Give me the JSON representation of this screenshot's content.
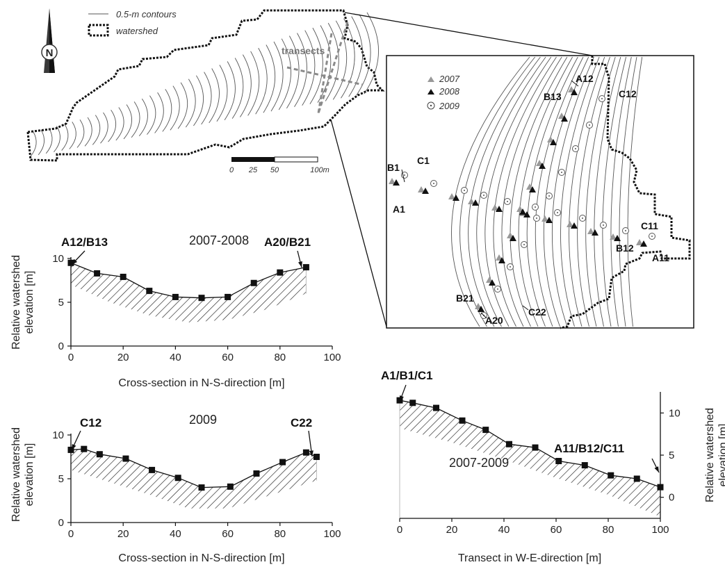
{
  "map": {
    "legend_contours": "0.5-m contours",
    "legend_watershed": "watershed",
    "transects_label": "transects",
    "north_letter": "N",
    "scale_ticks": [
      "0",
      "25",
      "50",
      "100m"
    ]
  },
  "inset": {
    "legend_2007": "2007",
    "legend_2008": "2008",
    "legend_2009": "2009",
    "point_labels": {
      "A12": "A12",
      "B13": "B13",
      "C12": "C12",
      "B1": "B1",
      "C1": "C1",
      "A1": "A1",
      "C11": "C11",
      "B12": "B12",
      "A11": "A11",
      "B21": "B21",
      "A20": "A20",
      "C22": "C22"
    }
  },
  "chart_data": [
    {
      "type": "area",
      "title": "2007-2008",
      "xlabel": "Cross-section in N-S-direction [m]",
      "ylabel": "Relative watershed elevation [m]",
      "xlim": [
        0,
        100
      ],
      "ylim": [
        0,
        10
      ],
      "x_ticks": [
        0,
        20,
        40,
        60,
        80,
        100
      ],
      "y_ticks": [
        0,
        5,
        10
      ],
      "annotations": [
        {
          "text": "A12/B13",
          "x": 0
        },
        {
          "text": "A20/B21",
          "x": 90
        }
      ],
      "series": [
        {
          "x": [
            0,
            10,
            20,
            30,
            40,
            50,
            60,
            70,
            80,
            90
          ],
          "values": [
            9.5,
            8.3,
            7.9,
            6.3,
            5.6,
            5.5,
            5.6,
            7.2,
            8.4,
            9.0
          ]
        }
      ],
      "lower_x": [
        0,
        15,
        30,
        45,
        60,
        75,
        90
      ],
      "lower_values": [
        7.0,
        5.0,
        3.5,
        2.7,
        3.0,
        4.2,
        6.0
      ]
    },
    {
      "type": "area",
      "title": "2009",
      "xlabel": "Cross-section in N-S-direction [m]",
      "ylabel": "Relative watershed elevation [m]",
      "xlim": [
        0,
        100
      ],
      "ylim": [
        0,
        10
      ],
      "x_ticks": [
        0,
        20,
        40,
        60,
        80,
        100
      ],
      "y_ticks": [
        0,
        5,
        10
      ],
      "annotations": [
        {
          "text": "C12",
          "x": 0
        },
        {
          "text": "C22",
          "x": 94
        }
      ],
      "series": [
        {
          "x": [
            0,
            5,
            11,
            21,
            31,
            41,
            50,
            61,
            71,
            81,
            90,
            94
          ],
          "values": [
            8.3,
            8.4,
            7.8,
            7.3,
            6.0,
            5.1,
            4.0,
            4.1,
            5.6,
            6.9,
            8.0,
            7.5
          ]
        }
      ],
      "lower_x": [
        0,
        15,
        30,
        45,
        60,
        75,
        94
      ],
      "lower_values": [
        6.0,
        4.6,
        3.2,
        1.6,
        1.6,
        3.0,
        4.8
      ]
    },
    {
      "type": "area",
      "title": "2007-2009",
      "xlabel": "Transect in W-E-direction [m]",
      "ylabel": "Relative watershed elevation [m]",
      "xlim": [
        0,
        100
      ],
      "ylim": [
        -2.5,
        12.5
      ],
      "x_ticks": [
        0,
        20,
        40,
        60,
        80,
        100
      ],
      "y_ticks": [
        0,
        5,
        10
      ],
      "annotations": [
        {
          "text": "A1/B1/C1",
          "x": 0
        },
        {
          "text": "A11/B12/C11",
          "x": 100
        }
      ],
      "series": [
        {
          "x": [
            0,
            5,
            14,
            24,
            33,
            42,
            52,
            61,
            71,
            81,
            91,
            100
          ],
          "values": [
            11.5,
            11.2,
            10.6,
            9.1,
            8.0,
            6.3,
            5.9,
            4.3,
            3.8,
            2.6,
            2.2,
            1.2
          ]
        }
      ],
      "lower_x": [
        0,
        20,
        40,
        60,
        80,
        100
      ],
      "lower_values": [
        8.2,
        6.5,
        4.5,
        2.3,
        0.3,
        -2.3
      ]
    }
  ]
}
